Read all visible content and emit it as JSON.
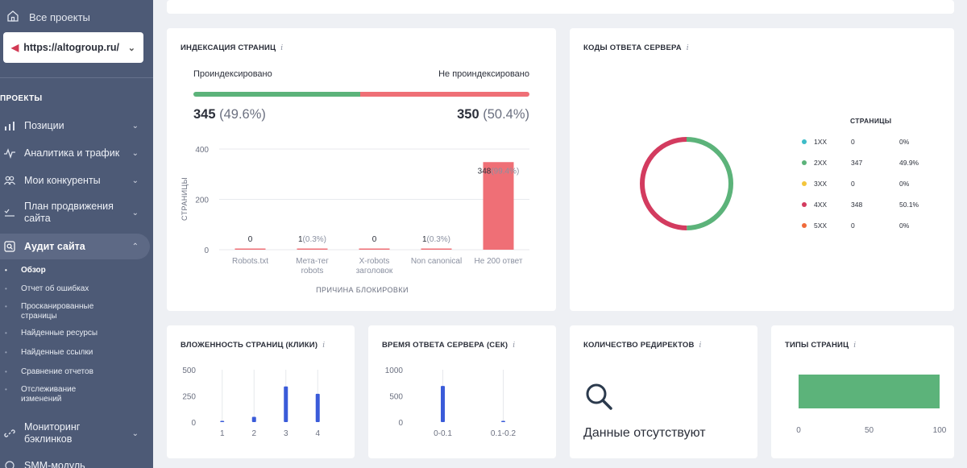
{
  "sidebar": {
    "all_projects": "Все проекты",
    "project": "https://altogroup.ru/",
    "section": "ПРОЕКТЫ",
    "items": [
      {
        "label": "Позиции"
      },
      {
        "label": "Аналитика и трафик"
      },
      {
        "label": "Мои конкуренты"
      },
      {
        "label": "План продвижения сайта"
      },
      {
        "label": "Аудит сайта"
      },
      {
        "label": "Мониторинг бэклинков"
      },
      {
        "label": "SMM-модуль"
      }
    ],
    "subitems": [
      {
        "label": "Обзор"
      },
      {
        "label": "Отчет об ошибках"
      },
      {
        "label": "Просканированные страницы"
      },
      {
        "label": "Найденные ресурсы"
      },
      {
        "label": "Найденные ссылки"
      },
      {
        "label": "Сравнение отчетов"
      },
      {
        "label": "Отслеживание изменений"
      }
    ]
  },
  "indexing": {
    "title": "ИНДЕКСАЦИЯ СТРАНИЦ",
    "info": "i",
    "indexed_label": "Проиндексировано",
    "not_indexed_label": "Не проиндексировано",
    "indexed_count": "345",
    "indexed_pct": "(49.6%)",
    "not_indexed_count": "350",
    "not_indexed_pct": "(50.4%)",
    "indexed_color": "#5cb37a",
    "not_indexed_color": "#ef6f76",
    "indexed_share": 0.496
  },
  "server_codes": {
    "title": "КОДЫ ОТВЕТА СЕРВЕРА",
    "info": "i",
    "col_header": "СТРАНИЦЫ",
    "rows": [
      {
        "code": "1XX",
        "count": "0",
        "pct": "0%",
        "color": "#3dbcc8"
      },
      {
        "code": "2XX",
        "count": "347",
        "pct": "49.9%",
        "color": "#5cb37a"
      },
      {
        "code": "3XX",
        "count": "0",
        "pct": "0%",
        "color": "#f3c53c"
      },
      {
        "code": "4XX",
        "count": "348",
        "pct": "50.1%",
        "color": "#d33b5f"
      },
      {
        "code": "5XX",
        "count": "0",
        "pct": "0%",
        "color": "#f06a3a"
      }
    ]
  },
  "depth": {
    "title": "ВЛОЖЕННОСТЬ СТРАНИЦ (КЛИКИ)",
    "info": "i"
  },
  "response_time": {
    "title": "ВРЕМЯ ОТВЕТА СЕРВЕРА (СЕК)",
    "info": "i"
  },
  "redirects": {
    "title": "КОЛИЧЕСТВО РЕДИРЕКТОВ",
    "info": "i",
    "empty": "Данные отсутствуют"
  },
  "page_types": {
    "title": "ТИПЫ СТРАНИЦ",
    "info": "i"
  },
  "chart_data": [
    {
      "type": "bar",
      "ylabel": "СТРАНИЦЫ",
      "xlabel": "ПРИЧИНА БЛОКИРОВКИ",
      "ylim": [
        0,
        400
      ],
      "yticks": [
        "400",
        "200",
        "0"
      ],
      "categories": [
        "Robots.txt",
        "Мета-тег robots",
        "X-robots заголовок",
        "Non canonical",
        "Не 200 ответ"
      ],
      "cat_lines": [
        [
          "Robots.txt"
        ],
        [
          "Мета-тег",
          "robots"
        ],
        [
          "X-robots",
          "заголовок"
        ],
        [
          "Non canonical"
        ],
        [
          "Не 200 ответ"
        ]
      ],
      "values": [
        0,
        1,
        0,
        1,
        348
      ],
      "value_labels": [
        "0",
        "1",
        "0",
        "1",
        "348"
      ],
      "pct_labels": [
        "",
        "(0.3%)",
        "",
        "(0.3%)",
        "(99.4%)"
      ],
      "color": "#ef6f76"
    },
    {
      "type": "pie",
      "labels": [
        "2XX",
        "4XX"
      ],
      "values": [
        347,
        348
      ],
      "colors": [
        "#5cb37a",
        "#d33b5f"
      ]
    },
    {
      "type": "bar",
      "ylim": [
        0,
        500
      ],
      "yticks": [
        "500",
        "250",
        "0"
      ],
      "categories": [
        "1",
        "2",
        "3",
        "4"
      ],
      "values": [
        5,
        50,
        340,
        270
      ],
      "color": "#3a5bd9"
    },
    {
      "type": "bar",
      "ylim": [
        0,
        1000
      ],
      "yticks": [
        "1000",
        "500",
        "0"
      ],
      "categories": [
        "0-0.1",
        "0.1-0.2"
      ],
      "values": [
        690,
        5
      ],
      "color": "#3a5bd9"
    },
    {
      "type": "bar",
      "orientation": "horizontal",
      "xlim": [
        0,
        100
      ],
      "xticks": [
        "0",
        "50",
        "100"
      ],
      "values": [
        100
      ],
      "color": "#5cb37a"
    }
  ]
}
